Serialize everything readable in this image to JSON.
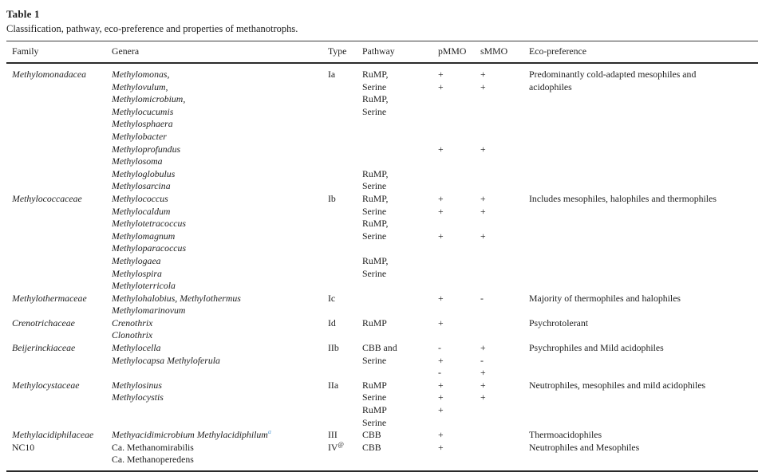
{
  "page": {
    "title": "Table 1",
    "caption": "Classification, pathway, eco-preference and properties of methanotrophs."
  },
  "table": {
    "footnote_color": "#5b9fd6",
    "columns": [
      {
        "key": "family",
        "label": "Family"
      },
      {
        "key": "genera",
        "label": "Genera"
      },
      {
        "key": "type",
        "label": "Type"
      },
      {
        "key": "pathway",
        "label": "Pathway"
      },
      {
        "key": "pmmo",
        "label": "pMMO"
      },
      {
        "key": "smmo",
        "label": "sMMO"
      },
      {
        "key": "eco",
        "label": "Eco-preference"
      }
    ],
    "rows": [
      {
        "family": "Methylomonadacea",
        "genera": "Methylomonas,",
        "type": "Ia",
        "pathway": "RuMP,",
        "pmmo": "+",
        "smmo": "+",
        "eco": "Predominantly cold-adapted mesophiles and"
      },
      {
        "genera": "Methylovulum,",
        "pathway": "Serine",
        "pmmo": "+",
        "smmo": "+",
        "eco": "acidophiles"
      },
      {
        "genera": "Methylomicrobium,",
        "pathway": "RuMP,"
      },
      {
        "genera": "Methylocucumis",
        "pathway": "Serine"
      },
      {
        "genera": "Methylosphaera"
      },
      {
        "genera": "Methylobacter"
      },
      {
        "genera": "Methyloprofundus",
        "pmmo": "+",
        "smmo": "+"
      },
      {
        "genera": "Methylosoma"
      },
      {
        "genera": "Methyloglobulus",
        "pathway": "RuMP,"
      },
      {
        "genera": "Methylosarcina",
        "pathway": "Serine"
      },
      {
        "family": "Methylococcaceae",
        "genera": "Methylococcus",
        "type": "Ib",
        "pathway": "RuMP,",
        "pmmo": "+",
        "smmo": "+",
        "eco": "Includes mesophiles, halophiles and thermophiles"
      },
      {
        "genera": "Methylocaldum",
        "pathway": "Serine",
        "pmmo": "+",
        "smmo": "+"
      },
      {
        "genera": "Methylotetracoccus",
        "pathway": "RuMP,"
      },
      {
        "genera": "Methylomagnum",
        "pathway": "Serine",
        "pmmo": "+",
        "smmo": "+"
      },
      {
        "genera": "Methyloparacoccus"
      },
      {
        "genera": "Methylogaea",
        "pathway": "RuMP,"
      },
      {
        "genera": "Methylospira",
        "pathway": "Serine"
      },
      {
        "genera": "Methyloterricola"
      },
      {
        "family": "Methylothermaceae",
        "genera": "Methylohalobius, Methylothermus",
        "type": "Ic",
        "pmmo": "+",
        "smmo": "-",
        "eco": "Majority of thermophiles and halophiles"
      },
      {
        "genera": "Methylomarinovum"
      },
      {
        "family": "Crenotrichaceae",
        "genera": "Crenothrix",
        "type": "Id",
        "pathway": "RuMP",
        "pmmo": "+",
        "eco": "Psychrotolerant"
      },
      {
        "genera": "Clonothrix"
      },
      {
        "family": "Beijerinckiaceae",
        "genera": "Methylocella",
        "type": "IIb",
        "pathway": "CBB and",
        "pmmo": "-",
        "smmo": "+",
        "eco": "Psychrophiles and Mild acidophiles"
      },
      {
        "genera": "Methylocapsa Methyloferula",
        "pathway": "Serine",
        "pmmo": "+",
        "smmo": "-"
      },
      {
        "pmmo": "-",
        "smmo": "+"
      },
      {
        "family": "Methylocystaceae",
        "genera": "Methylosinus",
        "type": "IIa",
        "pathway": "RuMP",
        "pmmo": "+",
        "smmo": "+",
        "eco": "Neutrophiles, mesophiles and mild acidophiles"
      },
      {
        "genera": "Methylocystis",
        "pathway": "Serine",
        "pmmo": "+",
        "smmo": "+"
      },
      {
        "pathway": "RuMP",
        "pmmo": "+"
      },
      {
        "pathway": "Serine"
      },
      {
        "family": "Methylacidiphilaceae",
        "genera": "Methyacidimicrobium Methylacidiphilum",
        "genera_sup": "a",
        "type": "III",
        "pathway": "CBB",
        "pmmo": "+",
        "eco": "Thermoacidophiles"
      },
      {
        "family": "NC10",
        "family_roman": true,
        "genera": "Ca. Methanomirabilis",
        "genera_roman": true,
        "type": "IV",
        "type_sup": "@",
        "pathway": "CBB",
        "pmmo": "+",
        "eco": "Neutrophiles and Mesophiles"
      },
      {
        "genera": "Ca. Methanoperedens",
        "genera_roman": true
      }
    ]
  }
}
